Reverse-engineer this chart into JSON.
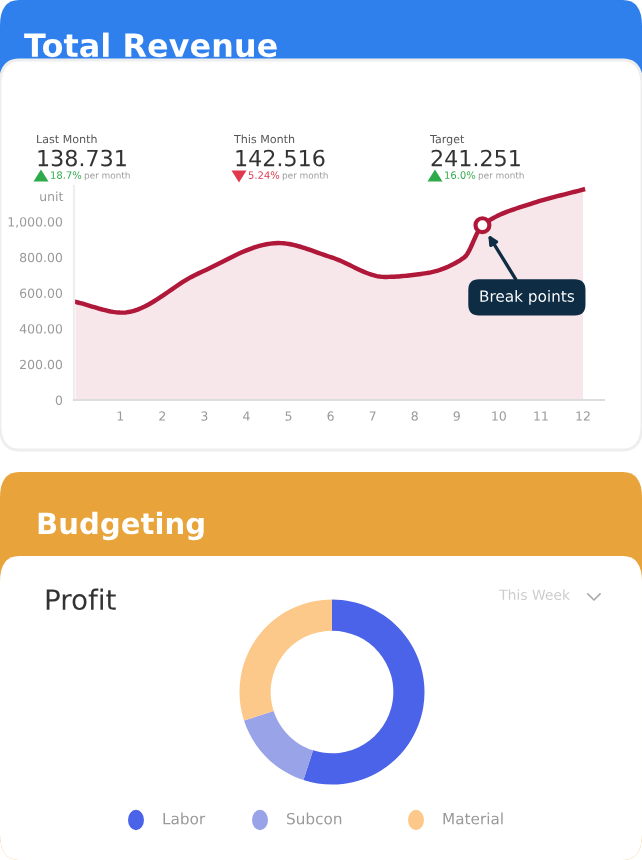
{
  "chart_data": [
    {
      "type": "area",
      "title": "Total Revenue",
      "ylabel": "unit",
      "annotations": [
        "Last Month",
        "138.731",
        "18.7%",
        "per month",
        "This Month",
        "142.516",
        "5.24%",
        "per month",
        "Target",
        "241.251",
        "16.0%",
        "per month",
        {
          "text": "Break points",
          "x": 9.61,
          "y": 980
        }
      ],
      "x": [
        -0.06,
        1.05,
        2.86,
        4.76,
        6.02,
        7.29,
        8.24,
        9.18,
        9.61,
        10.76,
        12
      ],
      "series": [
        {
          "color": "#b0183a",
          "values": [
            550,
            490,
            710,
            880,
            800,
            690,
            710,
            800,
            980,
            1100,
            1180
          ]
        }
      ],
      "xlim": [
        -0.1,
        12.5
      ],
      "xticks": [
        1,
        2,
        3,
        4,
        5,
        6,
        7,
        8,
        9,
        10,
        11,
        12
      ],
      "ylim": [
        0,
        1200
      ],
      "yticks": [
        0,
        {
          "value": 200,
          "label": "200.00"
        },
        {
          "value": 400,
          "label": "400.00"
        },
        {
          "value": 600,
          "label": "600.00"
        },
        {
          "value": 800,
          "label": "800.00"
        },
        {
          "value": 1000,
          "label": "1,000.00"
        }
      ],
      "grid": false
    },
    {
      "type": "donut",
      "title": "Budgeting",
      "subtitle": "Profit",
      "annotations": [
        "This Week"
      ],
      "categories": [
        "Labor",
        "Subcon",
        "Material"
      ],
      "values": [
        55,
        15,
        30
      ],
      "colors": [
        "#4a63e8",
        "#99a3e8",
        "#fcc98a"
      ],
      "legend": "bottom"
    }
  ]
}
